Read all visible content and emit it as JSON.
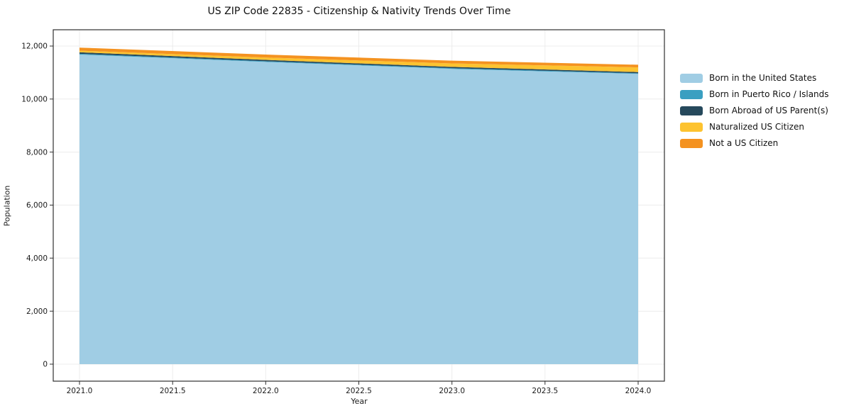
{
  "title": "US ZIP Code 22835 - Citizenship & Nativity Trends Over Time",
  "chart_data": {
    "type": "area",
    "stacked": true,
    "title": "US ZIP Code 22835 - Citizenship & Nativity Trends Over Time",
    "xlabel": "Year",
    "ylabel": "Population",
    "x": [
      2021,
      2022,
      2023,
      2024
    ],
    "series": [
      {
        "name": "Born in the United States",
        "color": "#a0cde4",
        "values": [
          11680,
          11400,
          11140,
          10950
        ]
      },
      {
        "name": "Born in Puerto Rico / Islands",
        "color": "#3a9fc1",
        "values": [
          30,
          28,
          26,
          25
        ]
      },
      {
        "name": "Born Abroad of US Parent(s)",
        "color": "#26495c",
        "values": [
          55,
          50,
          48,
          45
        ]
      },
      {
        "name": "Naturalized US Citizen",
        "color": "#fdc330",
        "values": [
          60,
          90,
          130,
          175
        ]
      },
      {
        "name": "Not a US Citizen",
        "color": "#f49220",
        "values": [
          115,
          110,
          105,
          100
        ]
      }
    ],
    "x_ticks": [
      {
        "value": 2021.0,
        "label": "2021.0"
      },
      {
        "value": 2021.5,
        "label": "2021.5"
      },
      {
        "value": 2022.0,
        "label": "2022.0"
      },
      {
        "value": 2022.5,
        "label": "2022.5"
      },
      {
        "value": 2023.0,
        "label": "2023.0"
      },
      {
        "value": 2023.5,
        "label": "2023.5"
      },
      {
        "value": 2024.0,
        "label": "2024.0"
      }
    ],
    "y_ticks": [
      {
        "value": 0,
        "label": "0"
      },
      {
        "value": 2000,
        "label": "2,000"
      },
      {
        "value": 4000,
        "label": "4,000"
      },
      {
        "value": 6000,
        "label": "6,000"
      },
      {
        "value": 8000,
        "label": "8,000"
      },
      {
        "value": 10000,
        "label": "10,000"
      },
      {
        "value": 12000,
        "label": "12,000"
      }
    ],
    "xlim": [
      2020.86,
      2024.14
    ],
    "ylim": [
      -640,
      12620
    ],
    "grid": true,
    "legend_position": "right"
  }
}
